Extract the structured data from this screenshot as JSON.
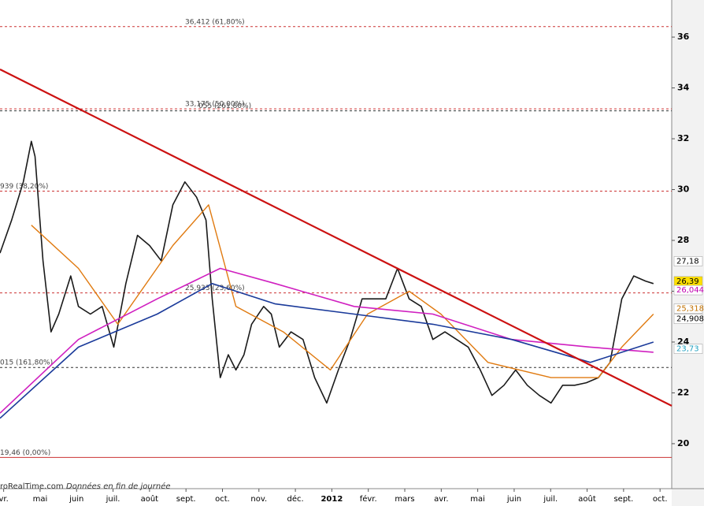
{
  "chart_data": {
    "type": "line",
    "xlim": [
      -0.1,
      18.32
    ],
    "ylim": [
      18.23,
      37.46
    ],
    "yticks": [
      20,
      22,
      24,
      26,
      28,
      30,
      32,
      34,
      36
    ],
    "xticks": [
      {
        "value": 0,
        "label": "vr."
      },
      {
        "value": 1,
        "label": "mai"
      },
      {
        "value": 2,
        "label": "juin"
      },
      {
        "value": 3,
        "label": "juil."
      },
      {
        "value": 4,
        "label": "août"
      },
      {
        "value": 5,
        "label": "sept."
      },
      {
        "value": 6,
        "label": "oct."
      },
      {
        "value": 7,
        "label": "nov."
      },
      {
        "value": 8,
        "label": "déc."
      },
      {
        "value": 9,
        "label": "2012"
      },
      {
        "value": 10,
        "label": "févr."
      },
      {
        "value": 11,
        "label": "mars"
      },
      {
        "value": 12,
        "label": "avr."
      },
      {
        "value": 13,
        "label": "mai"
      },
      {
        "value": 14,
        "label": "juin"
      },
      {
        "value": 15,
        "label": "juil."
      },
      {
        "value": 16,
        "label": "août"
      },
      {
        "value": 17,
        "label": "sept."
      },
      {
        "value": 18,
        "label": "oct."
      }
    ],
    "levels": [
      {
        "value": 36.412,
        "label": "36,412 (61,80%)",
        "color": "#cc3333",
        "dash": true
      },
      {
        "value": 33.175,
        "label": "33,175 (50,00%)",
        "color": "#cc3333",
        "dash": true
      },
      {
        "value": 33.1,
        "label": "055 (261,80%)",
        "color": "#333333",
        "dash": true
      },
      {
        "value": 29.939,
        "label": "939 (38,20%)",
        "color": "#cc3333",
        "dash": true
      },
      {
        "value": 25.933,
        "label": "25,933 (23,60%)",
        "color": "#cc3333",
        "dash": true
      },
      {
        "value": 23.0,
        "label": "015 (161,80%)",
        "color": "#333333",
        "dash": true
      },
      {
        "value": 19.46,
        "label": "19,46 (0,00%)",
        "color": "#cc3333",
        "dash": false
      }
    ],
    "series": [
      {
        "color": "#1a1a1a",
        "width": 1.6,
        "x": [
          -0.1,
          0.22,
          0.54,
          0.76,
          0.86,
          1.08,
          1.3,
          1.51,
          1.84,
          2.05,
          2.38,
          2.7,
          3.02,
          3.35,
          3.67,
          4.0,
          4.32,
          4.64,
          4.97,
          5.29,
          5.55,
          5.72,
          5.94,
          6.16,
          6.37,
          6.59,
          6.8,
          7.13,
          7.34,
          7.56,
          7.88,
          8.21,
          8.53,
          8.86,
          9.18,
          9.5,
          9.83,
          10.15,
          10.48,
          10.8,
          11.12,
          11.45,
          11.77,
          12.1,
          12.42,
          12.74,
          13.07,
          13.39,
          13.72,
          14.04,
          14.36,
          14.69,
          15.01,
          15.33,
          15.66,
          15.98,
          16.31,
          16.63,
          16.95,
          17.28,
          17.6,
          17.82
        ],
        "values": [
          27.5,
          28.8,
          30.3,
          31.9,
          31.3,
          27.2,
          24.4,
          25.1,
          26.6,
          25.4,
          25.1,
          25.4,
          23.8,
          26.3,
          28.2,
          27.8,
          27.2,
          29.4,
          30.3,
          29.7,
          28.8,
          25.7,
          22.6,
          23.5,
          22.9,
          23.5,
          24.7,
          25.4,
          25.1,
          23.8,
          24.4,
          24.1,
          22.6,
          21.6,
          22.9,
          24.1,
          25.7,
          25.7,
          25.7,
          26.9,
          25.7,
          25.4,
          24.1,
          24.4,
          24.1,
          23.8,
          22.9,
          21.9,
          22.3,
          22.9,
          22.3,
          21.9,
          21.6,
          22.3,
          22.3,
          22.4,
          22.6,
          23.2,
          25.7,
          26.6,
          26.4,
          26.3
        ]
      },
      {
        "color": "#e07a10",
        "width": 1.4,
        "x": [
          0.76,
          2.05,
          3.13,
          4.64,
          5.62,
          6.37,
          7.67,
          8.96,
          9.98,
          11.12,
          11.99,
          13.28,
          15.01,
          16.31,
          16.95,
          17.82
        ],
        "values": [
          28.6,
          26.9,
          24.7,
          27.8,
          29.4,
          25.4,
          24.4,
          22.9,
          25.1,
          26.0,
          25.1,
          23.2,
          22.6,
          22.6,
          23.8,
          25.1
        ]
      },
      {
        "color": "#d020c0",
        "width": 1.6,
        "x": [
          -0.1,
          2.05,
          4.21,
          5.94,
          7.45,
          9.61,
          11.77,
          13.93,
          16.09,
          17.82
        ],
        "values": [
          21.2,
          24.1,
          25.7,
          26.9,
          26.3,
          25.4,
          25.1,
          24.1,
          23.8,
          23.6
        ]
      },
      {
        "color": "#1a3a9a",
        "width": 1.6,
        "x": [
          -0.1,
          2.05,
          4.21,
          5.72,
          7.45,
          9.61,
          11.77,
          13.93,
          16.09,
          17.82
        ],
        "values": [
          21.0,
          23.8,
          25.1,
          26.3,
          25.5,
          25.1,
          24.7,
          24.1,
          23.2,
          24.0
        ]
      },
      {
        "color": "#cc1111",
        "width": 2.2,
        "x": [
          -0.1,
          18.32
        ],
        "values": [
          34.73,
          21.49
        ]
      }
    ],
    "right_labels": [
      {
        "value": 27.18,
        "label": "27,18",
        "color": "#000000",
        "bg": "#ffffff"
      },
      {
        "value": 26.39,
        "label": "26,39",
        "color": "#000000",
        "bg": "#ffe000"
      },
      {
        "value": 26.044,
        "label": "26,044",
        "color": "#c000b0",
        "bg": "#ffffff"
      },
      {
        "value": 25.318,
        "label": "25,318",
        "color": "#c07000",
        "bg": "#ffffff"
      },
      {
        "value": 24.908,
        "label": "24,908",
        "color": "#000000",
        "bg": "#ffffff"
      },
      {
        "value": 23.73,
        "label": "23,73",
        "color": "#20a0c0",
        "bg": "#ffffff"
      }
    ],
    "footer": {
      "source": "roRealTime.com",
      "note": "Données en fin de journée"
    }
  }
}
